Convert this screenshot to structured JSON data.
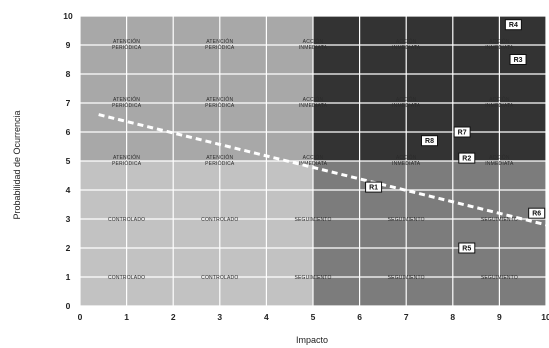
{
  "chart_data": {
    "type": "heatmap",
    "xlabel": "Impacto",
    "ylabel": "Probabilidad de Ocurrencia",
    "xlim": [
      0,
      10
    ],
    "ylim": [
      0,
      10
    ],
    "x_ticks": [
      "0",
      "1",
      "2",
      "3",
      "4",
      "5",
      "6",
      "7",
      "8",
      "9",
      "10"
    ],
    "y_ticks": [
      "0",
      "1",
      "2",
      "3",
      "4",
      "5",
      "6",
      "7",
      "8",
      "9",
      "10"
    ],
    "zone_labels": {
      "controlado": "CONTROLADO",
      "seguimiento": "SEGUIMIENTO",
      "atencion_periodica": "ATENCIÓN PERIÓDICA",
      "accion": "ACCIÓN INMEDIATA"
    },
    "zone_colors": {
      "controlado": "#c2c2c2",
      "atencion_periodica": "#a8a8a8",
      "seguimiento": "#7c7c7c",
      "accion": "#333333"
    },
    "zones": [
      {
        "zone": "controlado",
        "x": [
          0,
          5
        ],
        "y": [
          0,
          5
        ]
      },
      {
        "zone": "seguimiento",
        "x": [
          5,
          10
        ],
        "y": [
          0,
          5
        ]
      },
      {
        "zone": "atencion_periodica",
        "x": [
          0,
          5
        ],
        "y": [
          5,
          10
        ]
      },
      {
        "zone": "accion",
        "x": [
          5,
          10
        ],
        "y": [
          5,
          10
        ]
      }
    ],
    "threshold_line": {
      "x": [
        0.4,
        10
      ],
      "y": [
        6.6,
        2.8
      ],
      "style": "dashed"
    },
    "risks": [
      {
        "label": "R4",
        "x": 9.3,
        "y": 9.7
      },
      {
        "label": "R3",
        "x": 9.4,
        "y": 8.5
      },
      {
        "label": "R7",
        "x": 8.2,
        "y": 6.0
      },
      {
        "label": "R8",
        "x": 7.5,
        "y": 5.7
      },
      {
        "label": "R2",
        "x": 8.3,
        "y": 5.1
      },
      {
        "label": "R1",
        "x": 6.3,
        "y": 4.1
      },
      {
        "label": "R6",
        "x": 9.8,
        "y": 3.2
      },
      {
        "label": "R5",
        "x": 8.3,
        "y": 2.0
      }
    ]
  }
}
